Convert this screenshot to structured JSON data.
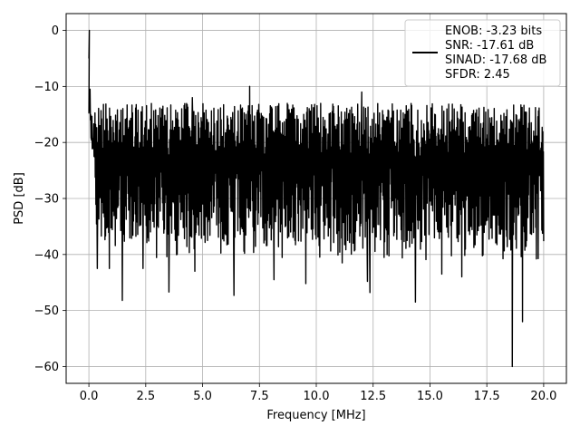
{
  "chart_data": {
    "type": "line",
    "title": "",
    "xlabel": "Frequency [MHz]",
    "ylabel": "PSD [dB]",
    "xlim": [
      -1.0,
      21.0
    ],
    "ylim": [
      -63.0,
      3.0
    ],
    "grid": true,
    "legend_position": "top-right",
    "x_ticks": [
      0.0,
      2.5,
      5.0,
      7.5,
      10.0,
      12.5,
      15.0,
      17.5,
      20.0
    ],
    "x_tick_labels": [
      "0.0",
      "2.5",
      "5.0",
      "7.5",
      "10.0",
      "12.5",
      "15.0",
      "17.5",
      "20.0"
    ],
    "y_ticks": [
      0,
      -10,
      -20,
      -30,
      -40,
      -50,
      -60
    ],
    "y_tick_labels": [
      "0",
      "−10",
      "−20",
      "−30",
      "−40",
      "−50",
      "−60"
    ],
    "legend_lines": [
      "ENOB: -3.23 bits",
      "SNR: -17.61 dB",
      "SINAD: -17.68 dB",
      "SFDR: 2.45"
    ],
    "line_color": "#000000",
    "series": [
      {
        "x_range": [
          0.0,
          20.0
        ],
        "peak": {
          "x": 0.02,
          "y": 0.0
        },
        "typical_band": [
          -35,
          -13
        ],
        "minima": [
          {
            "x": 0.37,
            "y": -42.5
          },
          {
            "x": 0.9,
            "y": -42.5
          },
          {
            "x": 1.47,
            "y": -48.2
          },
          {
            "x": 2.38,
            "y": -42.5
          },
          {
            "x": 3.52,
            "y": -46.7
          },
          {
            "x": 4.66,
            "y": -43.0
          },
          {
            "x": 6.38,
            "y": -47.3
          },
          {
            "x": 8.14,
            "y": -44.5
          },
          {
            "x": 9.54,
            "y": -45.2
          },
          {
            "x": 11.14,
            "y": -41.5
          },
          {
            "x": 12.25,
            "y": -44.8
          },
          {
            "x": 12.36,
            "y": -46.8
          },
          {
            "x": 14.36,
            "y": -48.5
          },
          {
            "x": 15.52,
            "y": -43.5
          },
          {
            "x": 16.4,
            "y": -44.0
          },
          {
            "x": 18.62,
            "y": -60.0
          },
          {
            "x": 19.07,
            "y": -52.0
          }
        ],
        "maxima": [
          {
            "x": 0.05,
            "y": -10.5
          },
          {
            "x": 4.55,
            "y": -12.0
          },
          {
            "x": 7.07,
            "y": -10.0
          },
          {
            "x": 12.0,
            "y": -11.0
          }
        ]
      }
    ]
  }
}
